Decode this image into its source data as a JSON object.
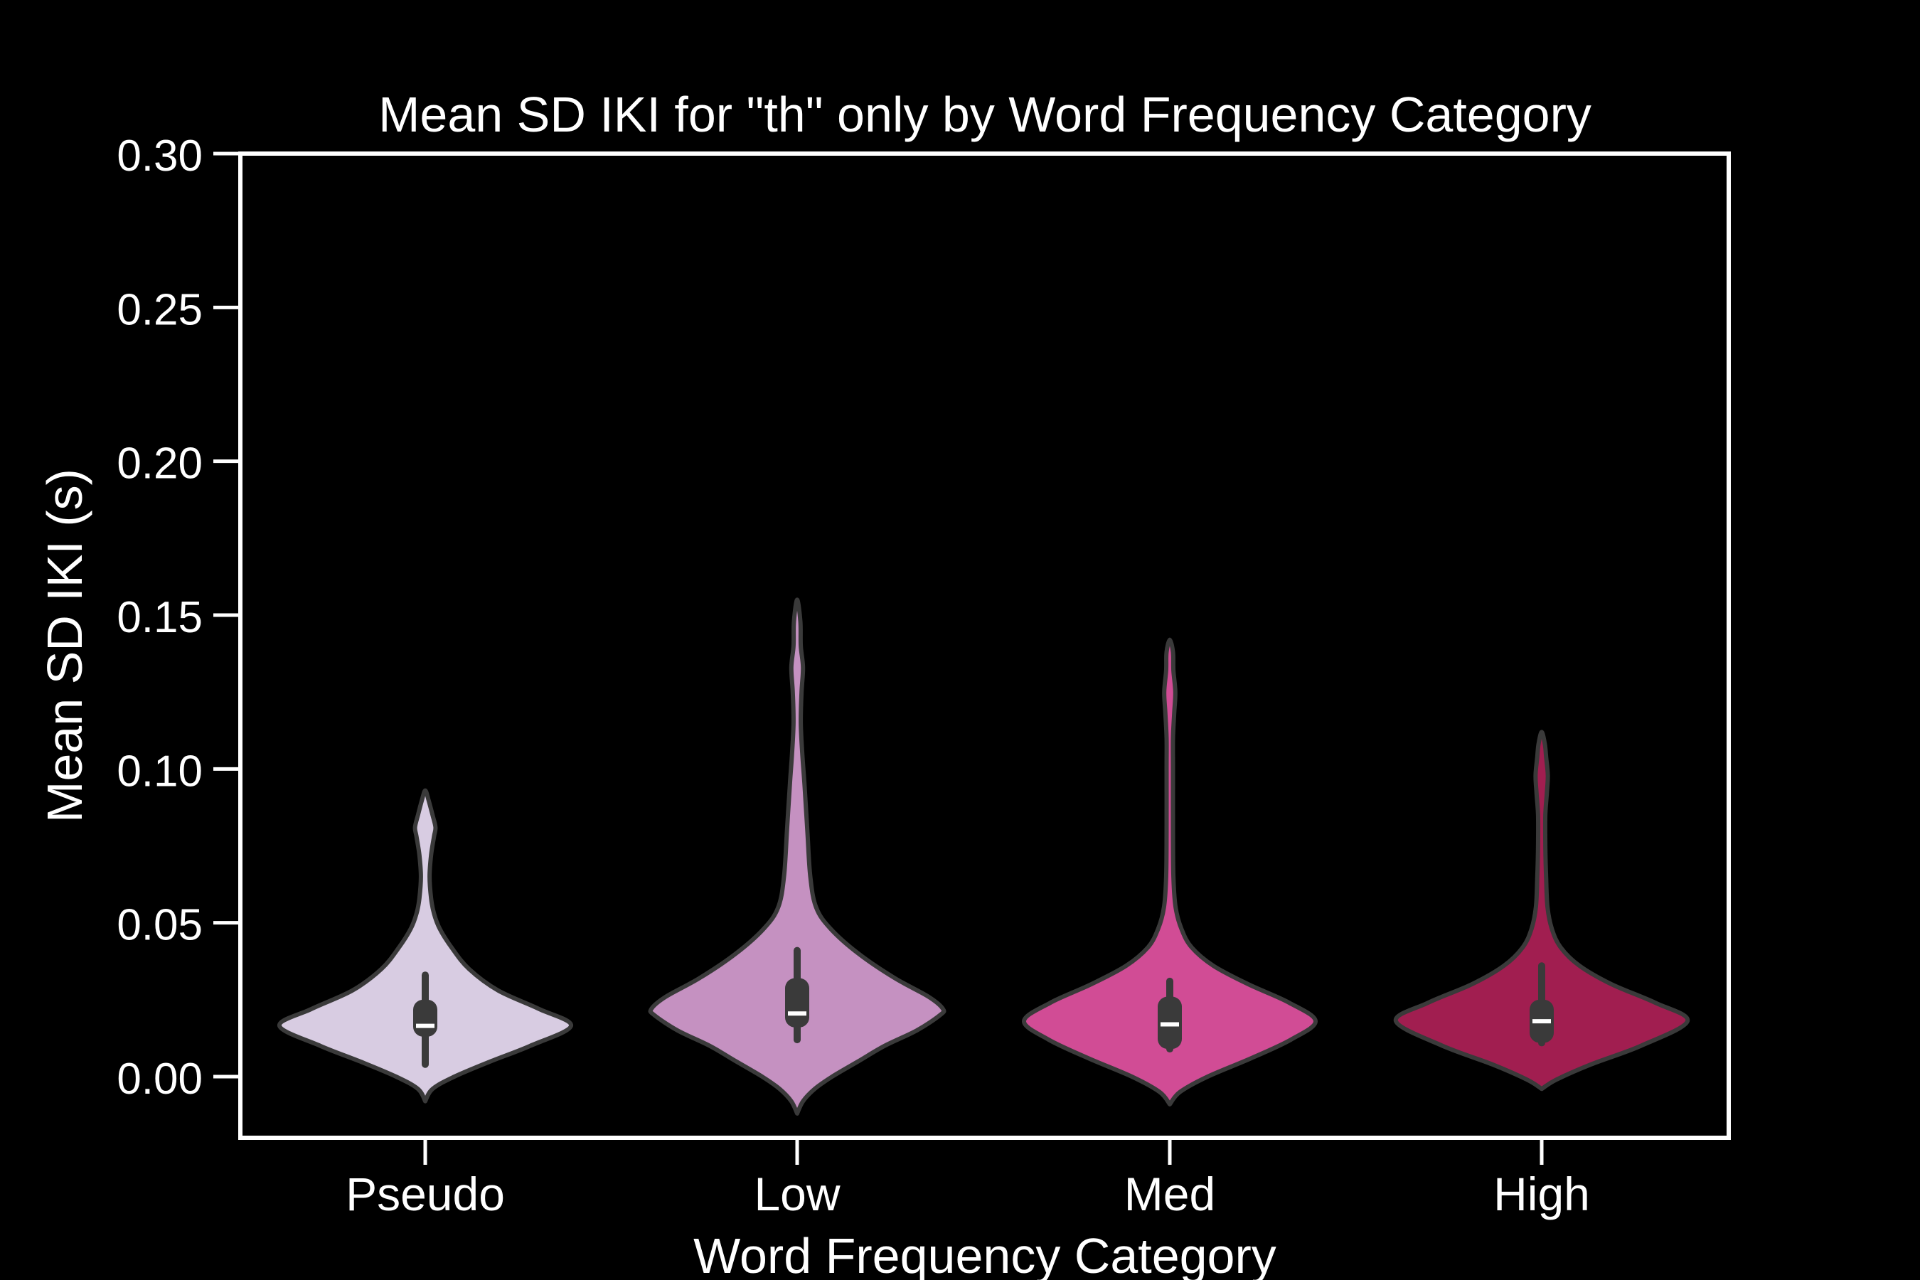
{
  "chart_data": {
    "type": "violin",
    "title": "Mean SD IKI for \"th\" only by Word Frequency Category",
    "xlabel": "Word Frequency Category",
    "ylabel": "Mean SD IKI (s)",
    "ylim": [
      -0.02,
      0.3
    ],
    "yticks": [
      0.0,
      0.05,
      0.1,
      0.15,
      0.2,
      0.25,
      0.3
    ],
    "ytick_labels": [
      "0.00",
      "0.05",
      "0.10",
      "0.15",
      "0.20",
      "0.25",
      "0.30"
    ],
    "categories": [
      "Pseudo",
      "Low",
      "Med",
      "High"
    ],
    "grid": false,
    "colors": {
      "background": "#000000",
      "axes": "#ffffff",
      "text": "#ffffff",
      "violin_edge": "#3a3a3a",
      "box": "#3a3a3a",
      "median": "#ffffff"
    },
    "violins": [
      {
        "category": "Pseudo",
        "color": "#d8cce2",
        "median": 0.0165,
        "q1": 0.013,
        "q3": 0.025,
        "whisker_low": 0.004,
        "whisker_high": 0.033,
        "density": [
          [
            -0.008,
            0.0
          ],
          [
            -0.004,
            0.05
          ],
          [
            0.0,
            0.2
          ],
          [
            0.005,
            0.45
          ],
          [
            0.01,
            0.72
          ],
          [
            0.0165,
            1.0
          ],
          [
            0.022,
            0.78
          ],
          [
            0.028,
            0.5
          ],
          [
            0.035,
            0.3
          ],
          [
            0.042,
            0.18
          ],
          [
            0.048,
            0.1
          ],
          [
            0.053,
            0.06
          ],
          [
            0.058,
            0.04
          ],
          [
            0.065,
            0.03
          ],
          [
            0.072,
            0.04
          ],
          [
            0.078,
            0.06
          ],
          [
            0.081,
            0.07
          ],
          [
            0.085,
            0.05
          ],
          [
            0.09,
            0.02
          ],
          [
            0.093,
            0.0
          ]
        ]
      },
      {
        "category": "Low",
        "color": "#c591c1",
        "median": 0.0205,
        "q1": 0.016,
        "q3": 0.032,
        "whisker_low": 0.012,
        "whisker_high": 0.041,
        "density": [
          [
            -0.012,
            0.0
          ],
          [
            -0.008,
            0.04
          ],
          [
            -0.004,
            0.12
          ],
          [
            0.0,
            0.24
          ],
          [
            0.005,
            0.42
          ],
          [
            0.01,
            0.6
          ],
          [
            0.015,
            0.82
          ],
          [
            0.02,
            0.98
          ],
          [
            0.022,
            1.0
          ],
          [
            0.026,
            0.9
          ],
          [
            0.032,
            0.67
          ],
          [
            0.04,
            0.42
          ],
          [
            0.048,
            0.23
          ],
          [
            0.055,
            0.13
          ],
          [
            0.065,
            0.09
          ],
          [
            0.08,
            0.07
          ],
          [
            0.095,
            0.05
          ],
          [
            0.105,
            0.035
          ],
          [
            0.115,
            0.025
          ],
          [
            0.125,
            0.03
          ],
          [
            0.133,
            0.04
          ],
          [
            0.14,
            0.025
          ],
          [
            0.148,
            0.01
          ],
          [
            0.155,
            0.0
          ]
        ]
      },
      {
        "category": "Med",
        "color": "#d14c95",
        "median": 0.017,
        "q1": 0.009,
        "q3": 0.026,
        "whisker_low": 0.009,
        "whisker_high": 0.031,
        "density": [
          [
            -0.009,
            0.0
          ],
          [
            -0.005,
            0.07
          ],
          [
            0.0,
            0.26
          ],
          [
            0.006,
            0.56
          ],
          [
            0.012,
            0.83
          ],
          [
            0.018,
            1.0
          ],
          [
            0.024,
            0.82
          ],
          [
            0.03,
            0.54
          ],
          [
            0.036,
            0.3
          ],
          [
            0.042,
            0.15
          ],
          [
            0.048,
            0.08
          ],
          [
            0.055,
            0.04
          ],
          [
            0.065,
            0.025
          ],
          [
            0.08,
            0.02
          ],
          [
            0.1,
            0.018
          ],
          [
            0.11,
            0.02
          ],
          [
            0.118,
            0.03
          ],
          [
            0.125,
            0.038
          ],
          [
            0.132,
            0.025
          ],
          [
            0.138,
            0.01
          ],
          [
            0.142,
            0.0
          ]
        ]
      },
      {
        "category": "High",
        "color": "#a11e50",
        "median": 0.018,
        "q1": 0.011,
        "q3": 0.025,
        "whisker_low": 0.011,
        "whisker_high": 0.036,
        "density": [
          [
            -0.004,
            0.0
          ],
          [
            -0.001,
            0.1
          ],
          [
            0.004,
            0.34
          ],
          [
            0.01,
            0.68
          ],
          [
            0.018,
            1.0
          ],
          [
            0.024,
            0.78
          ],
          [
            0.03,
            0.48
          ],
          [
            0.036,
            0.26
          ],
          [
            0.042,
            0.13
          ],
          [
            0.048,
            0.07
          ],
          [
            0.055,
            0.04
          ],
          [
            0.065,
            0.03
          ],
          [
            0.075,
            0.025
          ],
          [
            0.085,
            0.025
          ],
          [
            0.092,
            0.035
          ],
          [
            0.098,
            0.042
          ],
          [
            0.104,
            0.03
          ],
          [
            0.108,
            0.012
          ],
          [
            0.112,
            0.0
          ]
        ]
      }
    ]
  }
}
